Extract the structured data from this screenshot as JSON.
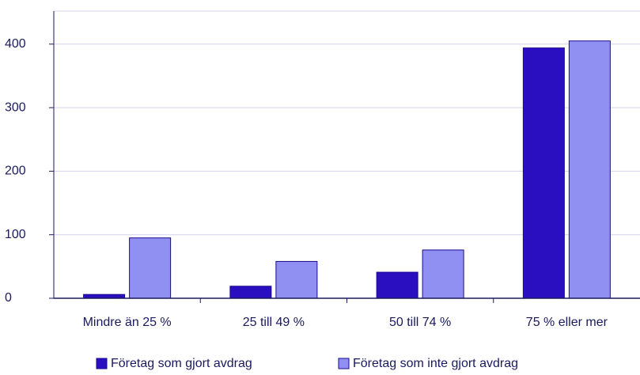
{
  "chart_data": {
    "type": "bar",
    "categories": [
      "Mindre än 25 %",
      "25 till 49 %",
      "50 till 74 %",
      "75 % eller mer"
    ],
    "series": [
      {
        "name": "Företag som gjort avdrag",
        "color": "#2a0fc0",
        "values": [
          6,
          19,
          41,
          394
        ]
      },
      {
        "name": "Företag som inte gjort avdrag",
        "color": "#9090f2",
        "values": [
          95,
          58,
          76,
          405
        ]
      }
    ],
    "ylim": [
      0,
      452
    ],
    "yticks": [
      0,
      100,
      200,
      300,
      400
    ],
    "grid": true,
    "legend": "bottom"
  }
}
